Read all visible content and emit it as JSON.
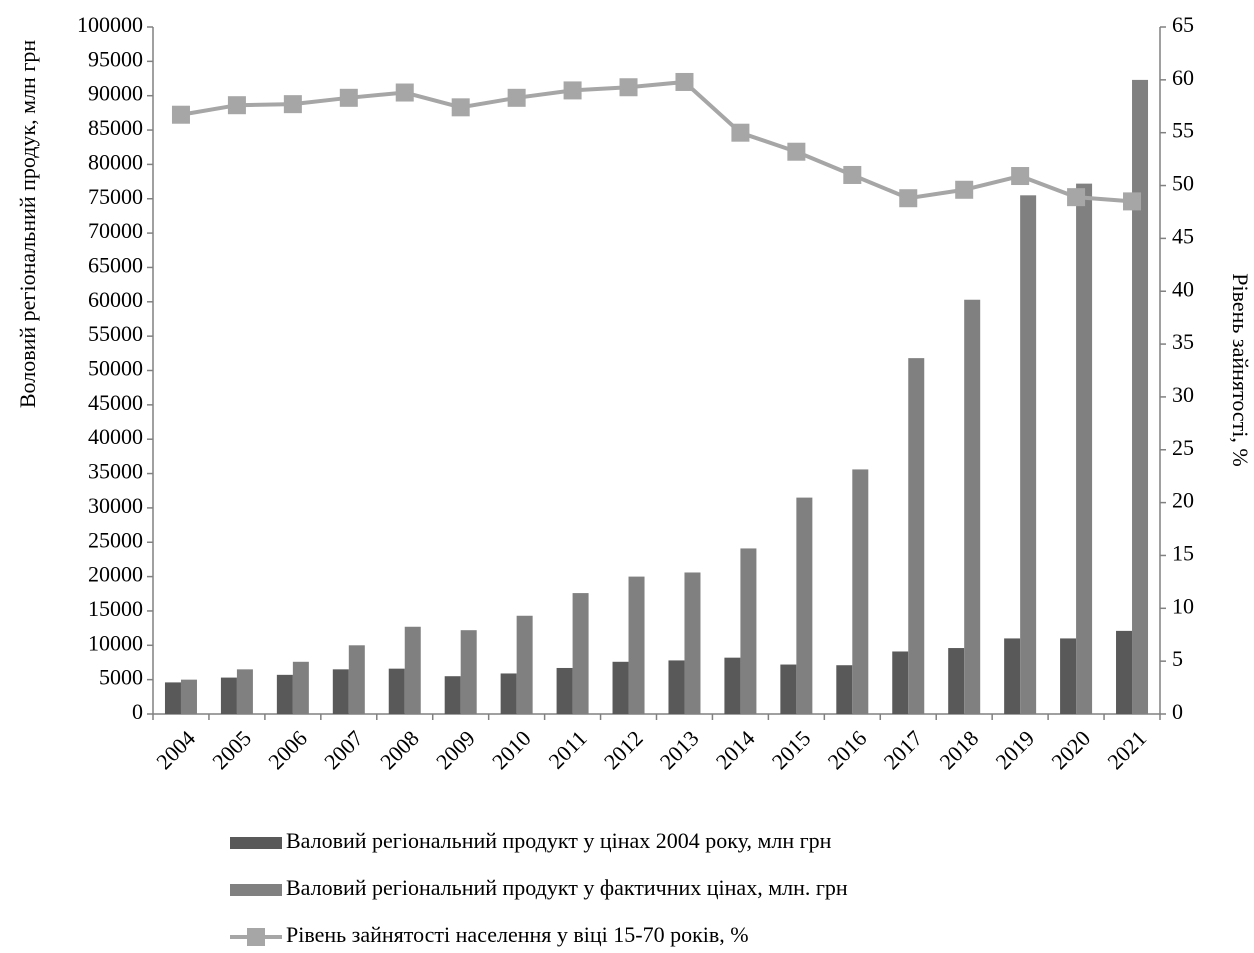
{
  "chart_data": {
    "type": "bar",
    "y_label": "Воловий регіональний продук, млн грн",
    "y2_label": "Рівень зайнятості, %",
    "categories": [
      "2004",
      "2005",
      "2006",
      "2007",
      "2008",
      "2009",
      "2010",
      "2011",
      "2012",
      "2013",
      "2014",
      "2015",
      "2016",
      "2017",
      "2018",
      "2019",
      "2020",
      "2021"
    ],
    "series": [
      {
        "name": "Валовий регіональний продукт у цінах 2004 року, млн грн",
        "type": "bar",
        "axis": "y",
        "color": "#595959",
        "values": [
          4600,
          5300,
          5700,
          6500,
          6600,
          5500,
          5900,
          6700,
          7600,
          7800,
          8200,
          7200,
          7100,
          9100,
          9600,
          11000,
          11000,
          12100
        ]
      },
      {
        "name": "Валовий регіональний продукт у фактичних цінах, млн. грн",
        "type": "bar",
        "axis": "y",
        "color": "#808080",
        "values": [
          5000,
          6500,
          7600,
          10000,
          12700,
          12200,
          14300,
          17600,
          20000,
          20600,
          24100,
          31500,
          35600,
          51800,
          60300,
          75500,
          77200,
          92300
        ]
      },
      {
        "name": "Рівень зайнятості населення у віці 15-70 років, %",
        "type": "line",
        "axis": "y2",
        "color": "#a6a6a6",
        "values": [
          56.7,
          57.6,
          57.7,
          58.3,
          58.8,
          57.4,
          58.3,
          59.0,
          59.3,
          59.8,
          55.0,
          53.2,
          51.0,
          48.8,
          49.6,
          50.9,
          48.9,
          48.5
        ]
      }
    ],
    "ylim": [
      0,
      100000
    ],
    "yticks": [
      0,
      5000,
      10000,
      15000,
      20000,
      25000,
      30000,
      35000,
      40000,
      45000,
      50000,
      55000,
      60000,
      65000,
      70000,
      75000,
      80000,
      85000,
      90000,
      95000,
      100000
    ],
    "y2lim": [
      0,
      65
    ],
    "y2ticks": [
      0,
      5,
      10,
      15,
      20,
      25,
      30,
      35,
      40,
      45,
      50,
      55,
      60,
      65
    ],
    "grid": false,
    "legend": "bottom"
  }
}
